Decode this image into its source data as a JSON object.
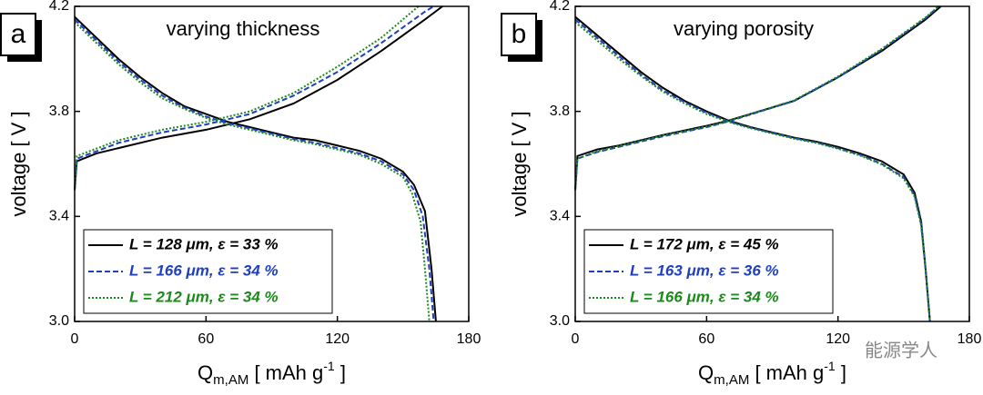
{
  "chart_data": [
    {
      "type": "line",
      "panel_label": "a",
      "title": "varying thickness",
      "ylabel": "voltage [ V ]",
      "xlabel_parts": [
        "Q",
        "m,AM",
        " [ mAh g",
        "-1",
        " ]"
      ],
      "xlim": [
        0,
        180
      ],
      "xticks": [
        0,
        60,
        120,
        180
      ],
      "ylim": [
        3,
        4.2
      ],
      "yticks": [
        {
          "value": 3,
          "label": "3.0"
        },
        3.4,
        3.8,
        4.2
      ],
      "series": [
        {
          "name": "L = 128 μm, ε = 33 %",
          "color": "#000000",
          "dash": "solid",
          "charge": {
            "x": [
              0,
              1,
              10,
              20,
              40,
              60,
              80,
              100,
              120,
              140,
              160,
              168
            ],
            "values": [
              3.5,
              3.61,
              3.64,
              3.66,
              3.7,
              3.73,
              3.77,
              3.83,
              3.92,
              4.03,
              4.15,
              4.2
            ]
          },
          "discharge": {
            "x": [
              0,
              10,
              20,
              30,
              40,
              50,
              60,
              70,
              80,
              90,
              100,
              110,
              120,
              130,
              140,
              150,
              155,
              160,
              163,
              165
            ],
            "values": [
              4.16,
              4.08,
              4.0,
              3.93,
              3.87,
              3.82,
              3.79,
              3.76,
              3.74,
              3.72,
              3.7,
              3.69,
              3.67,
              3.65,
              3.62,
              3.57,
              3.52,
              3.42,
              3.2,
              3.0
            ]
          }
        },
        {
          "name": "L = 166 μm, ε = 34 %",
          "color": "#1f3fbf",
          "dash": "dashed",
          "charge": {
            "x": [
              0,
              1,
              20,
              40,
              60,
              80,
              100,
              120,
              140,
              160,
              164
            ],
            "values": [
              3.5,
              3.62,
              3.68,
              3.72,
              3.75,
              3.79,
              3.86,
              3.95,
              4.06,
              4.18,
              4.2
            ]
          },
          "discharge": {
            "x": [
              0,
              10,
              20,
              30,
              40,
              50,
              60,
              70,
              80,
              90,
              100,
              110,
              120,
              130,
              140,
              150,
              155,
              159,
              162,
              164
            ],
            "values": [
              4.15,
              4.07,
              3.99,
              3.92,
              3.86,
              3.815,
              3.78,
              3.755,
              3.735,
              3.715,
              3.695,
              3.68,
              3.66,
              3.64,
              3.61,
              3.56,
              3.5,
              3.4,
              3.2,
              3.0
            ]
          }
        },
        {
          "name": "L = 212 μm, ε = 34 %",
          "color": "#1a8a1a",
          "dash": "dotted",
          "charge": {
            "x": [
              0,
              1,
              20,
              40,
              60,
              80,
              100,
              120,
              140,
              157
            ],
            "values": [
              3.5,
              3.63,
              3.69,
              3.73,
              3.76,
              3.8,
              3.87,
              3.97,
              4.08,
              4.2
            ]
          },
          "discharge": {
            "x": [
              0,
              10,
              20,
              30,
              40,
              50,
              60,
              70,
              80,
              90,
              100,
              110,
              120,
              130,
              140,
              150,
              154,
              158,
              160,
              162
            ],
            "values": [
              4.14,
              4.06,
              3.98,
              3.91,
              3.85,
              3.81,
              3.775,
              3.75,
              3.73,
              3.71,
              3.69,
              3.675,
              3.655,
              3.635,
              3.6,
              3.55,
              3.49,
              3.38,
              3.2,
              3.0
            ]
          }
        }
      ]
    },
    {
      "type": "line",
      "panel_label": "b",
      "title": "varying porosity",
      "ylabel": "voltage [ V ]",
      "xlabel_parts": [
        "Q",
        "m,AM",
        " [ mAh g",
        "-1",
        " ]"
      ],
      "xlim": [
        0,
        180
      ],
      "xticks": [
        0,
        60,
        120,
        180
      ],
      "ylim": [
        3,
        4.2
      ],
      "yticks": [
        {
          "value": 3,
          "label": "3.0"
        },
        3.4,
        3.8,
        4.2
      ],
      "series": [
        {
          "name": "L = 172 μm, ε = 45 %",
          "color": "#000000",
          "dash": "solid",
          "charge": {
            "x": [
              0,
              1,
              10,
              20,
              40,
              60,
              70,
              80,
              100,
              120,
              140,
              160,
              167
            ],
            "values": [
              3.5,
              3.63,
              3.655,
              3.67,
              3.71,
              3.745,
              3.765,
              3.79,
              3.84,
              3.93,
              4.03,
              4.15,
              4.2
            ]
          },
          "discharge": {
            "x": [
              0,
              10,
              20,
              30,
              40,
              50,
              60,
              70,
              80,
              90,
              100,
              110,
              120,
              130,
              140,
              150,
              155,
              158,
              160,
              162
            ],
            "values": [
              4.16,
              4.09,
              4.02,
              3.95,
              3.89,
              3.84,
              3.8,
              3.765,
              3.74,
              3.72,
              3.7,
              3.685,
              3.665,
              3.64,
              3.61,
              3.56,
              3.49,
              3.38,
              3.2,
              3.0
            ]
          }
        },
        {
          "name": "L = 163 μm, ε = 36 %",
          "color": "#1f3fbf",
          "dash": "dashed",
          "charge": {
            "x": [
              0,
              1,
              10,
              20,
              40,
              60,
              70,
              80,
              100,
              120,
              140,
              160,
              166
            ],
            "values": [
              3.5,
              3.62,
              3.645,
              3.665,
              3.705,
              3.74,
              3.762,
              3.788,
              3.84,
              3.93,
              4.035,
              4.155,
              4.2
            ]
          },
          "discharge": {
            "x": [
              0,
              10,
              20,
              30,
              40,
              50,
              60,
              70,
              80,
              90,
              100,
              110,
              120,
              130,
              140,
              150,
              155,
              158,
              160,
              162
            ],
            "values": [
              4.15,
              4.08,
              4.01,
              3.94,
              3.88,
              3.835,
              3.795,
              3.762,
              3.738,
              3.718,
              3.698,
              3.682,
              3.66,
              3.635,
              3.6,
              3.55,
              3.48,
              3.37,
              3.2,
              3.0
            ]
          }
        },
        {
          "name": "L = 166 μm, ε = 34 %",
          "color": "#1a8a1a",
          "dash": "dotted",
          "charge": {
            "x": [
              0,
              1,
              10,
              20,
              40,
              60,
              70,
              80,
              100,
              120,
              140,
              160,
              166
            ],
            "values": [
              3.5,
              3.62,
              3.648,
              3.668,
              3.708,
              3.742,
              3.763,
              3.79,
              3.842,
              3.933,
              4.038,
              4.158,
              4.2
            ]
          },
          "discharge": {
            "x": [
              0,
              10,
              20,
              30,
              40,
              50,
              60,
              70,
              80,
              90,
              100,
              110,
              120,
              130,
              140,
              150,
              155,
              158,
              160,
              162
            ],
            "values": [
              4.14,
              4.07,
              4.0,
              3.935,
              3.875,
              3.83,
              3.79,
              3.76,
              3.736,
              3.716,
              3.696,
              3.68,
              3.658,
              3.632,
              3.598,
              3.545,
              3.475,
              3.365,
              3.2,
              3.0
            ]
          }
        }
      ]
    }
  ],
  "watermark": "能源学人"
}
